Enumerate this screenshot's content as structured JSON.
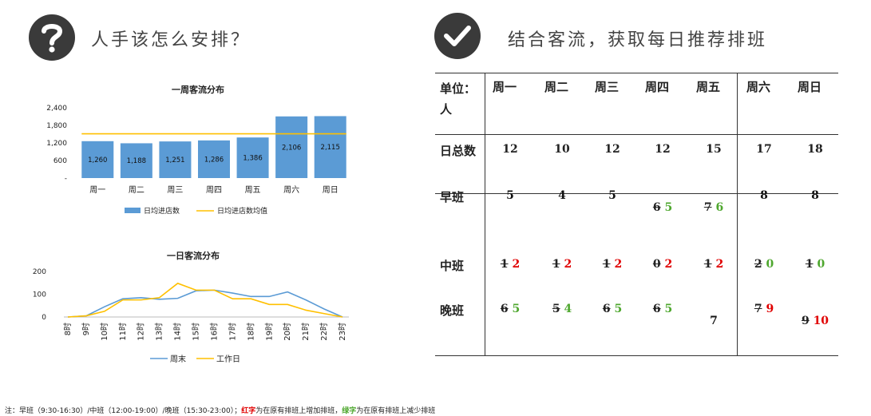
{
  "left": {
    "icon": "question-icon",
    "title": "人手该怎么安排？"
  },
  "right": {
    "icon": "check-icon",
    "title": "结合客流，获取每日推荐排班"
  },
  "chart_data": [
    {
      "type": "bar",
      "title": "一周客流分布",
      "categories": [
        "周一",
        "周二",
        "周三",
        "周四",
        "周五",
        "周六",
        "周日"
      ],
      "series": [
        {
          "name": "日均进店数",
          "type": "bar",
          "values": [
            1260,
            1188,
            1251,
            1286,
            1386,
            2106,
            2115
          ],
          "color": "#5b9bd5"
        },
        {
          "name": "日均进店数均值",
          "type": "line",
          "values": [
            1513,
            1513,
            1513,
            1513,
            1513,
            1513,
            1513
          ],
          "color": "#ffc000"
        }
      ],
      "data_labels": [
        "1,260",
        "1,188",
        "1,251",
        "1,286",
        "1,386",
        "2,106",
        "2,115"
      ],
      "y_ticks": [
        "2,400",
        "1,800",
        "1,200",
        "600",
        "-"
      ],
      "ylim": [
        0,
        2400
      ],
      "legend": "bottom"
    },
    {
      "type": "line",
      "title": "一日客流分布",
      "categories": [
        "8时",
        "9时",
        "10时",
        "11时",
        "12时",
        "13时",
        "14时",
        "15时",
        "16时",
        "17时",
        "18时",
        "19时",
        "20时",
        "21时",
        "22时",
        "23时"
      ],
      "series": [
        {
          "name": "周末",
          "values": [
            0,
            5,
            45,
            80,
            85,
            78,
            82,
            115,
            118,
            105,
            90,
            90,
            110,
            75,
            35,
            0
          ],
          "color": "#5b9bd5"
        },
        {
          "name": "工作日",
          "values": [
            0,
            5,
            25,
            75,
            75,
            85,
            148,
            118,
            118,
            80,
            80,
            55,
            55,
            30,
            15,
            0
          ],
          "color": "#ffc000"
        }
      ],
      "y_ticks": [
        "200",
        "100",
        "0"
      ],
      "ylim": [
        0,
        220
      ],
      "legend": "bottom"
    }
  ],
  "schedule": {
    "unit_label": "单位：人",
    "days": [
      "周一",
      "周二",
      "周三",
      "周四",
      "周五",
      "周六",
      "周日"
    ],
    "total_label": "日总数",
    "totals": [
      "12",
      "10",
      "12",
      "12",
      "15",
      "17",
      "18"
    ],
    "rows": [
      {
        "label": "早班",
        "cells": [
          {
            "old": "",
            "new": "5",
            "color": "black"
          },
          {
            "old": "",
            "new": "4",
            "color": "black"
          },
          {
            "old": "",
            "new": "5",
            "color": "black"
          },
          {
            "old": "6",
            "new": "5",
            "color": "green"
          },
          {
            "old": "7",
            "new": "6",
            "color": "green"
          },
          {
            "old": "",
            "new": "8",
            "color": "black"
          },
          {
            "old": "",
            "new": "8",
            "color": "black"
          }
        ]
      },
      {
        "label": "中班",
        "cells": [
          {
            "old": "1",
            "new": "2",
            "color": "red"
          },
          {
            "old": "1",
            "new": "2",
            "color": "red"
          },
          {
            "old": "1",
            "new": "2",
            "color": "red"
          },
          {
            "old": "0",
            "new": "2",
            "color": "red"
          },
          {
            "old": "1",
            "new": "2",
            "color": "red"
          },
          {
            "old": "2",
            "new": "0",
            "color": "green"
          },
          {
            "old": "1",
            "new": "0",
            "color": "green"
          }
        ]
      },
      {
        "label": "晚班",
        "cells": [
          {
            "old": "6",
            "new": "5",
            "color": "green"
          },
          {
            "old": "5",
            "new": "4",
            "color": "green"
          },
          {
            "old": "6",
            "new": "5",
            "color": "green"
          },
          {
            "old": "6",
            "new": "5",
            "color": "green"
          },
          {
            "old": "",
            "new": "7",
            "color": "black"
          },
          {
            "old": "7",
            "new": "9",
            "color": "red"
          },
          {
            "old": "9",
            "new": "10",
            "color": "red"
          }
        ]
      }
    ]
  },
  "note": {
    "prefix": "注：早班（9:30-16:30）/中班（12:00-19:00）/晚班（15:30-23:00）；",
    "red_word": "红字",
    "red_text": "为在原有排班上增加排班，",
    "green_word": "绿字",
    "green_text": "为在原有排班上减少排班",
    "red_color": "#e00000",
    "green_color": "#4ea72e"
  }
}
